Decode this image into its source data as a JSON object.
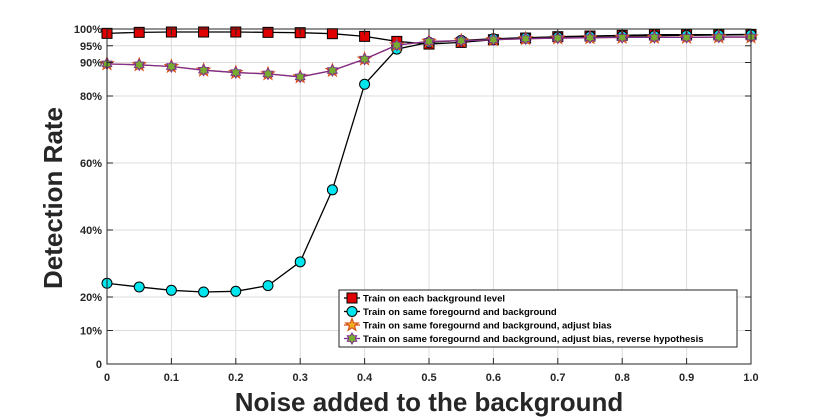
{
  "chart_data": {
    "type": "line",
    "xlabel": "Noise added to the background",
    "ylabel": "Detection Rate",
    "xlim": [
      0,
      1.0
    ],
    "ylim": [
      0,
      100
    ],
    "x_ticks": [
      0,
      0.1,
      0.2,
      0.3,
      0.4,
      0.5,
      0.6,
      0.7,
      0.8,
      0.9,
      1.0
    ],
    "x_tick_labels": [
      "0",
      "0.1",
      "0.2",
      "0.3",
      "0.4",
      "0.5",
      "0.6",
      "0.7",
      "0.8",
      "0.9",
      "1.0"
    ],
    "y_ticks": [
      0,
      10,
      20,
      40,
      60,
      80,
      90,
      95,
      100
    ],
    "y_tick_labels": [
      "0",
      "10%",
      "20%",
      "40%",
      "60%",
      "80%",
      "90%",
      "95%",
      "100%"
    ],
    "grid": true,
    "legend_position": "bottom-right",
    "x": [
      0,
      0.05,
      0.1,
      0.15,
      0.2,
      0.25,
      0.3,
      0.35,
      0.4,
      0.45,
      0.5,
      0.55,
      0.6,
      0.65,
      0.7,
      0.75,
      0.8,
      0.85,
      0.9,
      0.95,
      1.0
    ],
    "series": [
      {
        "name": "Train on each background level",
        "color": "#000000",
        "marker": "square",
        "marker_fill": "#e00000",
        "values": [
          98.7,
          99.0,
          99.1,
          99.1,
          99.1,
          99.0,
          98.9,
          98.6,
          97.8,
          96.3,
          95.5,
          96.0,
          96.8,
          97.3,
          97.7,
          97.9,
          98.1,
          98.3,
          98.3,
          98.3,
          98.4
        ]
      },
      {
        "name": "Train on same foregournd and background",
        "color": "#000000",
        "marker": "circle",
        "marker_fill": "#00e5ee",
        "values": [
          24.1,
          23.0,
          22.0,
          21.5,
          21.7,
          23.4,
          30.5,
          52.0,
          83.5,
          94.0,
          96.0,
          96.6,
          97.1,
          97.4,
          97.6,
          97.8,
          97.9,
          98.0,
          98.1,
          98.2,
          98.3
        ]
      },
      {
        "name": "Train on same foregournd and background, adjust bias",
        "color": "#d95319",
        "marker": "star",
        "marker_fill": "#edb120",
        "values": [
          89.6,
          89.3,
          88.8,
          87.7,
          87.0,
          86.6,
          85.7,
          87.6,
          91.0,
          95.2,
          96.3,
          96.5,
          96.8,
          97.1,
          97.3,
          97.4,
          97.5,
          97.5,
          97.5,
          97.6,
          97.6
        ]
      },
      {
        "name": "Train on same foregournd and background, adjust bias, reverse hypothesis",
        "color": "#7e2f8e",
        "marker": "hexagram",
        "marker_fill": "#77ac30",
        "values": [
          89.6,
          89.3,
          88.8,
          87.7,
          87.0,
          86.6,
          85.7,
          87.6,
          91.0,
          95.2,
          96.3,
          96.5,
          96.8,
          97.1,
          97.3,
          97.4,
          97.5,
          97.5,
          97.5,
          97.6,
          97.6
        ]
      }
    ]
  }
}
